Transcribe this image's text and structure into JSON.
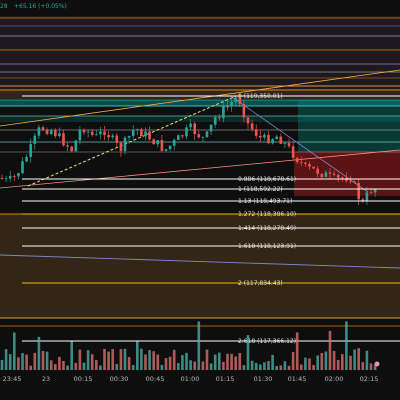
{
  "header": {
    "price_change": "28",
    "change_text": "+65.16 (+0.05%)"
  },
  "fib_levels": [
    {
      "ratio": "0",
      "price": "119,350.01",
      "label": "0 (119,350.01)",
      "color": "#ffffff"
    },
    {
      "ratio": "0.886",
      "price": "118,678.61",
      "label": "0.886 (118,678.61)",
      "color": "#ffffff"
    },
    {
      "ratio": "1",
      "price": "118,592.22",
      "label": "1 (118,592.22)",
      "color": "#ffffff"
    },
    {
      "ratio": "1.13",
      "price": "118,493.71",
      "label": "1.13 (118,493.71)",
      "color": "#ffffff"
    },
    {
      "ratio": "1.272",
      "price": "118,386.10",
      "label": "1.272 (118,386.10)",
      "color": "#f4b400"
    },
    {
      "ratio": "1.414",
      "price": "118,278.49",
      "label": "1.414 (118,278.49)",
      "color": "#ffffff"
    },
    {
      "ratio": "1.618",
      "price": "118,123.91",
      "label": "1.618 (118,123.91)",
      "color": "#ffffff"
    },
    {
      "ratio": "2",
      "price": "117,834.43",
      "label": "2 (117,834.43)",
      "color": "#f4b400"
    },
    {
      "ratio": "2.618",
      "price": "117,366.12",
      "label": "2.618 (117,366.12)",
      "color": "#ffffff"
    }
  ],
  "time_axis": {
    "labels": [
      "23:45",
      "23",
      "00:15",
      "00:30",
      "00:45",
      "01:00",
      "01:15",
      "01:30",
      "01:45",
      "02:00",
      "02:15"
    ]
  },
  "colors": {
    "background": "#0e0e0e",
    "bull": "#26a69a",
    "bear": "#ef5350",
    "fib_line": "#ffffff",
    "fib_highlight": "#f4b400",
    "zone_teal": "#00897b",
    "zone_red": "#b71c1c",
    "zone_orange": "#ff9800",
    "trend_line": "#ff8a80",
    "dashed_trend": "#dce775"
  },
  "icons": {
    "axis_marker": "circle-marker-icon"
  }
}
